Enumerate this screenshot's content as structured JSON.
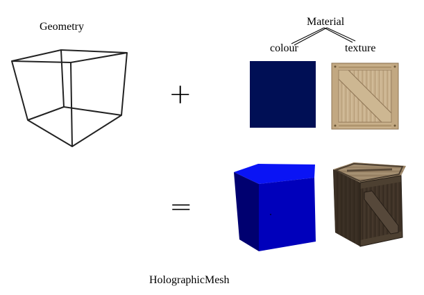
{
  "labels": {
    "geometry": "Geometry",
    "material": "Material",
    "colour": "colour",
    "texture": "texture",
    "result": "HolographicMesh"
  },
  "operators": {
    "plus": "+",
    "equals": "="
  },
  "colors": {
    "material_colour": "#000f55",
    "mesh_blue_front": "#0000bb",
    "mesh_blue_top": "#0a14f5",
    "mesh_blue_side": "#000070",
    "wood_light": "#c8b08c",
    "wood_dark": "#3f3327"
  },
  "icons": {
    "geometry": "wireframe-cube-icon",
    "colour": "solid-colour-swatch",
    "texture": "wooden-crate-texture-icon",
    "blue_mesh": "blue-cube-icon",
    "crate_mesh": "wooden-crate-cube-icon"
  }
}
